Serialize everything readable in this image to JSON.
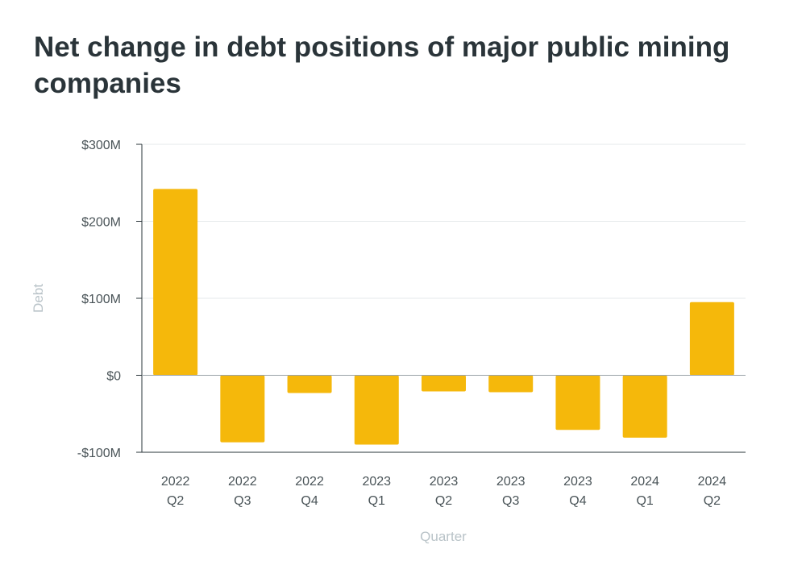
{
  "chart_data": {
    "type": "bar",
    "title": "Net change in debt positions of major public mining companies",
    "xlabel": "Quarter",
    "ylabel": "Debt",
    "categories": [
      [
        "2022",
        "Q2"
      ],
      [
        "2022",
        "Q3"
      ],
      [
        "2022",
        "Q4"
      ],
      [
        "2023",
        "Q1"
      ],
      [
        "2023",
        "Q2"
      ],
      [
        "2023",
        "Q3"
      ],
      [
        "2023",
        "Q4"
      ],
      [
        "2024",
        "Q1"
      ],
      [
        "2024",
        "Q2"
      ]
    ],
    "values": [
      242,
      -87,
      -23,
      -90,
      -21,
      -22,
      -71,
      -81,
      95
    ],
    "value_unit": "$M",
    "ylim": [
      -100,
      300
    ],
    "yticks": [
      {
        "value": 300,
        "label": "$300M"
      },
      {
        "value": 200,
        "label": "$200M"
      },
      {
        "value": 100,
        "label": "$100M"
      },
      {
        "value": 0,
        "label": "$0"
      },
      {
        "value": -100,
        "label": "-$100M"
      }
    ],
    "grid": true,
    "bar_color": "#f5b80b",
    "grid_color": "#e6e9eb",
    "axis_color": "#2a3439"
  }
}
